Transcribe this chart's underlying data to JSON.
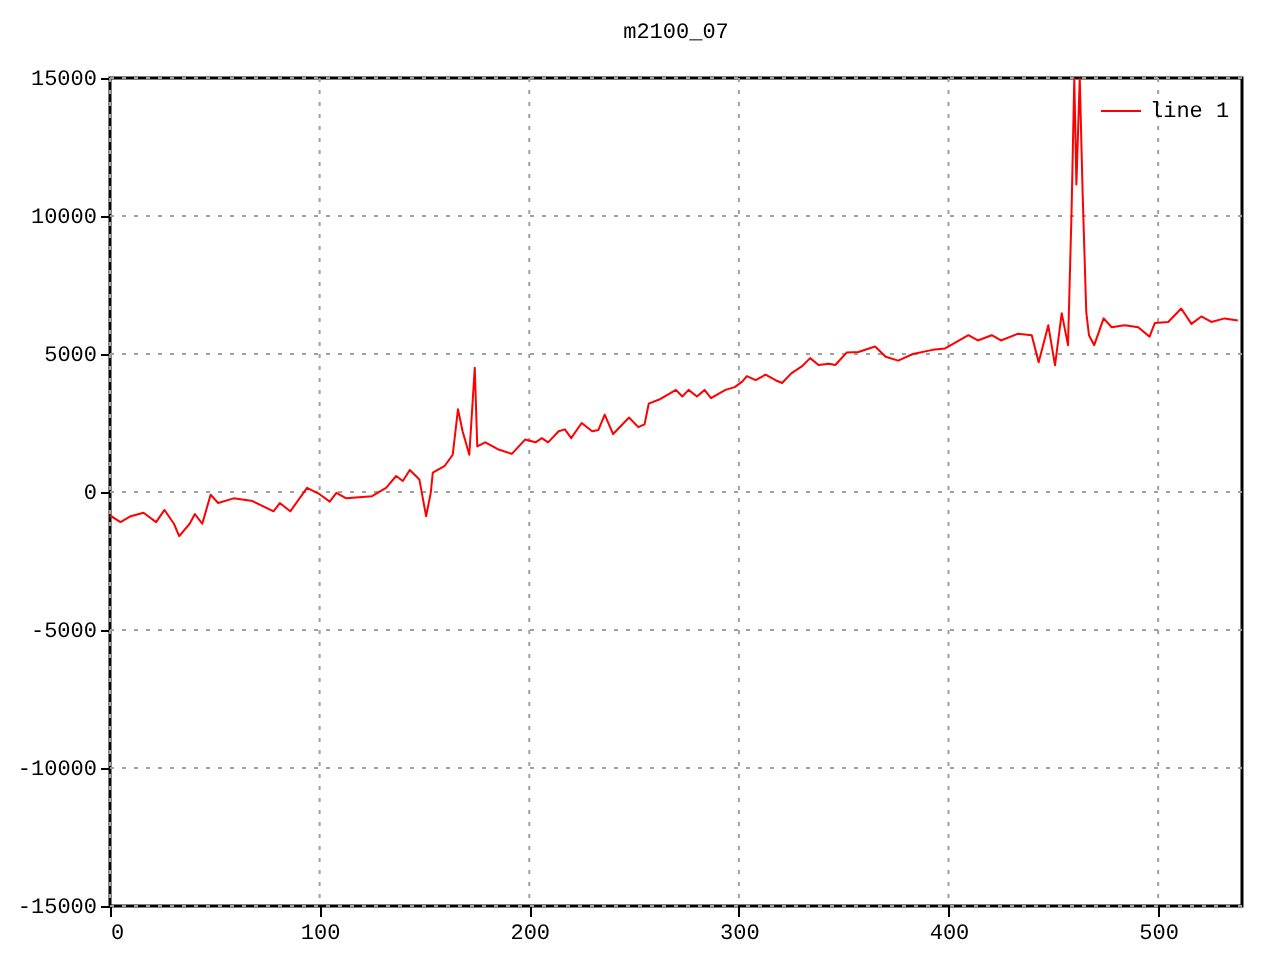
{
  "chart_data": {
    "type": "line",
    "title": "m2100_07",
    "x": [
      0,
      5,
      9.5,
      16,
      22,
      26,
      30.5,
      33,
      38,
      40.5,
      44,
      48,
      51.6,
      59,
      68,
      78,
      81,
      86,
      94,
      100,
      104.8,
      108,
      112.7,
      125,
      131.7,
      136.5,
      139.7,
      143,
      147.6,
      150.8,
      153,
      154,
      159.7,
      163.5,
      166,
      168.2,
      171.4,
      174,
      175.2,
      179,
      185,
      191.7,
      198,
      203,
      206,
      209,
      214,
      217,
      220,
      225,
      230,
      233,
      236,
      240,
      247.6,
      252,
      255,
      257,
      262,
      270,
      273,
      276,
      280,
      283.6,
      286.7,
      293.6,
      298,
      301.6,
      303.8,
      308,
      312.7,
      317.5,
      320.6,
      325,
      330,
      334,
      338,
      343,
      346,
      351.4,
      357,
      365,
      370,
      376,
      383,
      392.4,
      398.4,
      409.5,
      414,
      420.6,
      425,
      433,
      439.7,
      443,
      447.6,
      450.8,
      454,
      457,
      458.7,
      460,
      461,
      462.6,
      464,
      465.7,
      467,
      469.5,
      474,
      477.8,
      484,
      490.5,
      495.9,
      498.4,
      504.8,
      511,
      515.9,
      520.6,
      525.4,
      531.7,
      538
    ],
    "series": [
      {
        "name": "line 1",
        "color": "#ff0000",
        "values": [
          -850,
          -1090,
          -890,
          -750,
          -1090,
          -650,
          -1150,
          -1600,
          -1150,
          -800,
          -1150,
          -100,
          -400,
          -230,
          -330,
          -700,
          -400,
          -700,
          150,
          -80,
          -350,
          -30,
          -230,
          -150,
          150,
          580,
          400,
          800,
          450,
          -880,
          -30,
          700,
          950,
          1350,
          3000,
          2200,
          1350,
          4500,
          1650,
          1800,
          1550,
          1380,
          1900,
          1800,
          1950,
          1800,
          2200,
          2270,
          1950,
          2500,
          2200,
          2250,
          2800,
          2100,
          2700,
          2350,
          2450,
          3200,
          3350,
          3700,
          3460,
          3700,
          3460,
          3700,
          3400,
          3700,
          3800,
          4000,
          4200,
          4050,
          4250,
          4050,
          3950,
          4300,
          4550,
          4850,
          4600,
          4650,
          4600,
          5050,
          5070,
          5270,
          4900,
          4760,
          5000,
          5150,
          5200,
          5680,
          5490,
          5680,
          5490,
          5730,
          5680,
          4700,
          6040,
          4590,
          6480,
          5320,
          10170,
          15000,
          11140,
          15000,
          10780,
          6530,
          5680,
          5320,
          6290,
          5970,
          6040,
          5970,
          5630,
          6120,
          6160,
          6650,
          6090,
          6360,
          6160,
          6290,
          6210
        ]
      }
    ],
    "xlim": [
      0,
      540
    ],
    "xticks": [
      0,
      100,
      200,
      300,
      400,
      500
    ],
    "ylim": [
      -15000,
      15000
    ],
    "yticks": [
      -15000,
      -10000,
      -5000,
      0,
      5000,
      10000,
      15000
    ],
    "grid": true,
    "legend": "top right",
    "line_style": "solid",
    "marker": "none"
  }
}
